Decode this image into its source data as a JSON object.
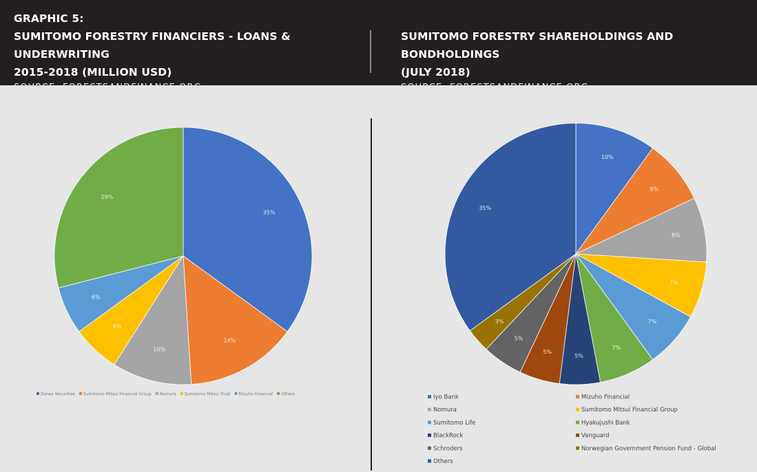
{
  "header": {
    "graphic_label": "GRAPHIC 5:",
    "left_title_line1": "SUMITOMO FORESTRY FINANCIERS - LOANS & UNDERWRITING",
    "left_title_line2": "2015-2018 (MILLION USD)",
    "left_source": "SOURCE: FORESTSANDFINANCE.ORG",
    "right_title_line1": "SUMITOMO FORESTRY SHAREHOLDINGS AND BONDHOLDINGS",
    "right_title_line2": "(JULY 2018)",
    "right_source": "SOURCE: FORESTSANDFINANCE.ORG"
  },
  "chart_data": [
    {
      "type": "pie",
      "labels": [
        "Daiwa Securities",
        "Sumitomo Mitsui Financial Group",
        "Nomura",
        "Sumitomo Mitsui Trust",
        "Mizuho Financial",
        "Others"
      ],
      "values": [
        35,
        14,
        10,
        6,
        6,
        29
      ],
      "value_labels": [
        "35%",
        "14%",
        "10%",
        "6%",
        "6%",
        "29%"
      ],
      "colors": [
        "#4472c4",
        "#ed7d31",
        "#a5a5a5",
        "#ffc000",
        "#5b9bd5",
        "#70ad47"
      ],
      "legend_position": "bottom"
    },
    {
      "type": "pie",
      "labels": [
        "Iyo Bank",
        "Mizuho Financial",
        "Nomura",
        "Sumitomo Mitsui Financial Group",
        "Sumitomo Life",
        "Hyakujushi Bank",
        "BlackRock",
        "Vanguard",
        "Schroders",
        "Norwegian Government Pension Fund - Global",
        "Others"
      ],
      "values": [
        10,
        8,
        8,
        7,
        7,
        7,
        5,
        5,
        5,
        3,
        35
      ],
      "value_labels": [
        "10%",
        "8%",
        "8%",
        "7%",
        "7%",
        "7%",
        "5%",
        "5%",
        "5%",
        "3%",
        "35%"
      ],
      "colors": [
        "#4472c4",
        "#ed7d31",
        "#a5a5a5",
        "#ffc000",
        "#5b9bd5",
        "#70ad47",
        "#264478",
        "#9e480e",
        "#636363",
        "#997300",
        "#335aa1"
      ],
      "legend_position": "bottom"
    }
  ]
}
